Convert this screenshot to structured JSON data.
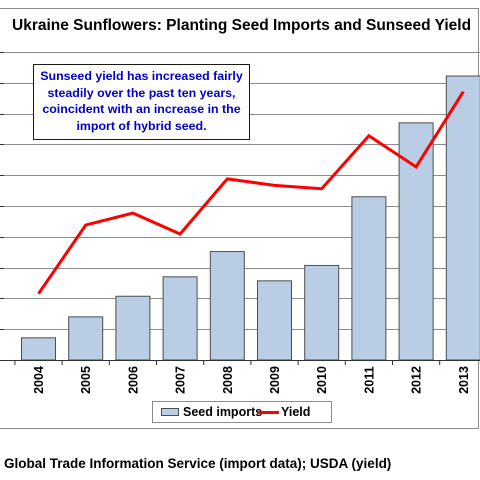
{
  "chart_data": {
    "type": "bar",
    "title": "Ukraine Sunflowers:  Planting Seed Imports and Sunseed Yield",
    "categories": [
      "2004",
      "2005",
      "2006",
      "2007",
      "2008",
      "2009",
      "2010",
      "2011",
      "2012",
      "2013"
    ],
    "series": [
      {
        "name": "Seed imports",
        "type": "bar",
        "color": "#b9cde5",
        "values": [
          0.72,
          1.4,
          2.07,
          2.7,
          3.52,
          2.57,
          3.07,
          5.3,
          7.7,
          9.22
        ]
      },
      {
        "name": "Yield",
        "type": "line",
        "color": "#ff0000",
        "values": [
          2.15,
          4.38,
          4.77,
          4.09,
          5.88,
          5.67,
          5.56,
          7.28,
          6.27,
          8.71
        ]
      }
    ],
    "ylim": [
      0,
      10
    ],
    "y_ticks": [
      0,
      1,
      2,
      3,
      4,
      5,
      6,
      7,
      8,
      9,
      10
    ],
    "grid": true,
    "legend": "bottom",
    "annotation": "Sunseed yield has increased fairly steadily over the past ten years, coincident with an increase in the import of hybrid seed."
  },
  "source_note": "Global Trade Information Service (import data); USDA (yield)",
  "colors": {
    "bar_fill": "#b9cde5",
    "bar_stroke": "#4d4d4d",
    "line": "#ff0000",
    "annotation_text": "#0000cc",
    "grid": "#8c8c8c"
  }
}
